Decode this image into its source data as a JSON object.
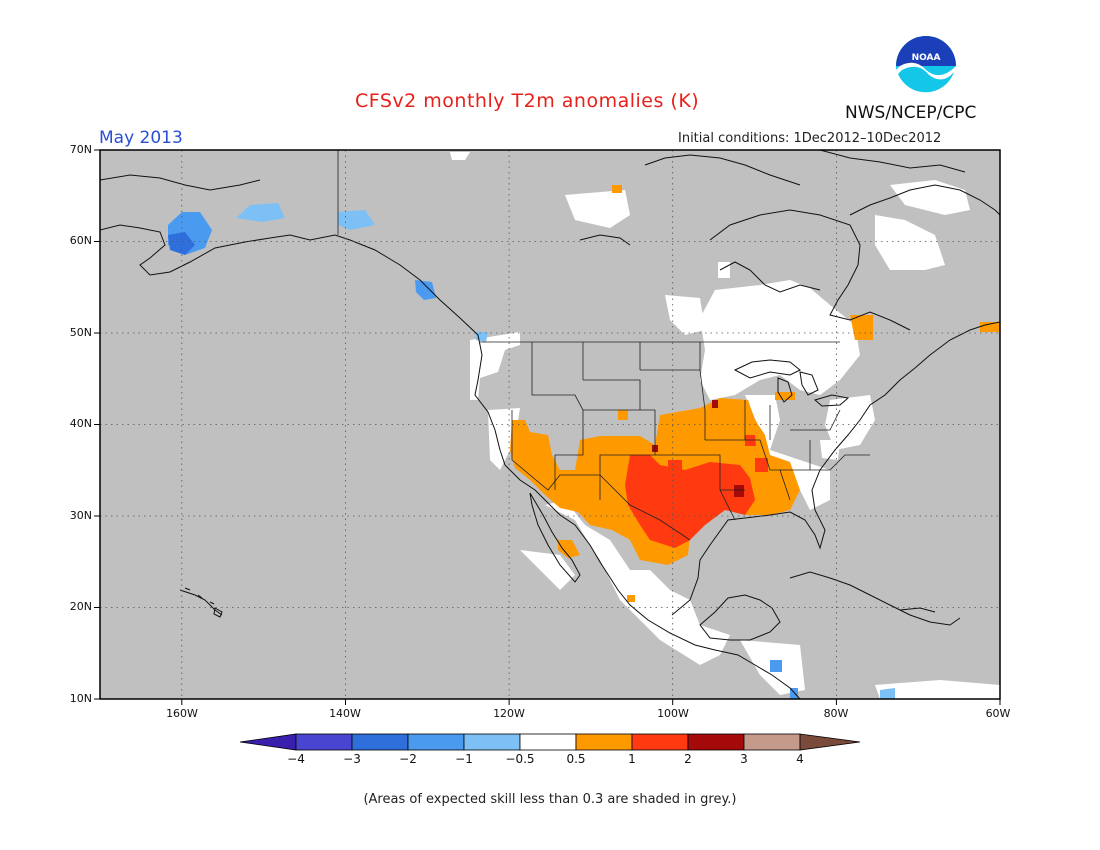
{
  "header": {
    "title": "CFSv2 monthly T2m anomalies (K)",
    "month": "May 2013",
    "initial_conditions": "Initial conditions: 1Dec2012–10Dec2012",
    "agency": "NWS/NCEP/CPC",
    "logo_text": "NOAA"
  },
  "map": {
    "projection": "lat-lon",
    "lon_range": [
      -170,
      -60
    ],
    "lat_range": [
      10,
      70
    ],
    "lat_ticks": [
      "70N",
      "60N",
      "50N",
      "40N",
      "30N",
      "20N",
      "10N"
    ],
    "lon_ticks": [
      "160W",
      "140W",
      "120W",
      "100W",
      "80W",
      "60W"
    ],
    "grid": "dotted",
    "background_color": "#c0c0c0",
    "regions": [
      {
        "name": "alaska-cold",
        "category": "-3 to -2",
        "center": [
          -159,
          61
        ]
      },
      {
        "name": "alaska-cool-1",
        "category": "-1 to -0.5",
        "center": [
          -151,
          64
        ]
      },
      {
        "name": "alaska-cool-2",
        "category": "-1 to -0.5",
        "center": [
          -138,
          63
        ]
      },
      {
        "name": "bc-coast-cool",
        "category": "-2 to -1",
        "center": [
          -131,
          55
        ]
      },
      {
        "name": "southwest-warm",
        "category": "0.5 to 1",
        "center": [
          -117,
          35
        ]
      },
      {
        "name": "southern-plains-warm",
        "category": "1 to 2",
        "center": [
          -100,
          31
        ]
      },
      {
        "name": "central-warm",
        "category": "0.5 to 1",
        "center": [
          -95,
          37
        ]
      },
      {
        "name": "mississippi-hot",
        "category": "2 to 3",
        "center": [
          -91,
          33
        ]
      },
      {
        "name": "quebec-warm",
        "category": "0.5 to 1",
        "center": [
          -72,
          50
        ]
      },
      {
        "name": "labrador-warm",
        "category": "0.5 to 1",
        "center": [
          -60,
          50
        ]
      }
    ]
  },
  "colorbar": {
    "labels": [
      "−4",
      "−3",
      "−2",
      "−1",
      "−0.5",
      "0.5",
      "1",
      "2",
      "3",
      "4"
    ],
    "colors": [
      "#3a1fae",
      "#4a45d0",
      "#2e6fdc",
      "#4a9af0",
      "#7cc0f6",
      "#ffffff",
      "#ff9900",
      "#ff3a10",
      "#a50a0a",
      "#c49a8a",
      "#7a4a3a"
    ]
  },
  "footnote": "(Areas of expected skill less than 0.3 are shaded in grey.)"
}
